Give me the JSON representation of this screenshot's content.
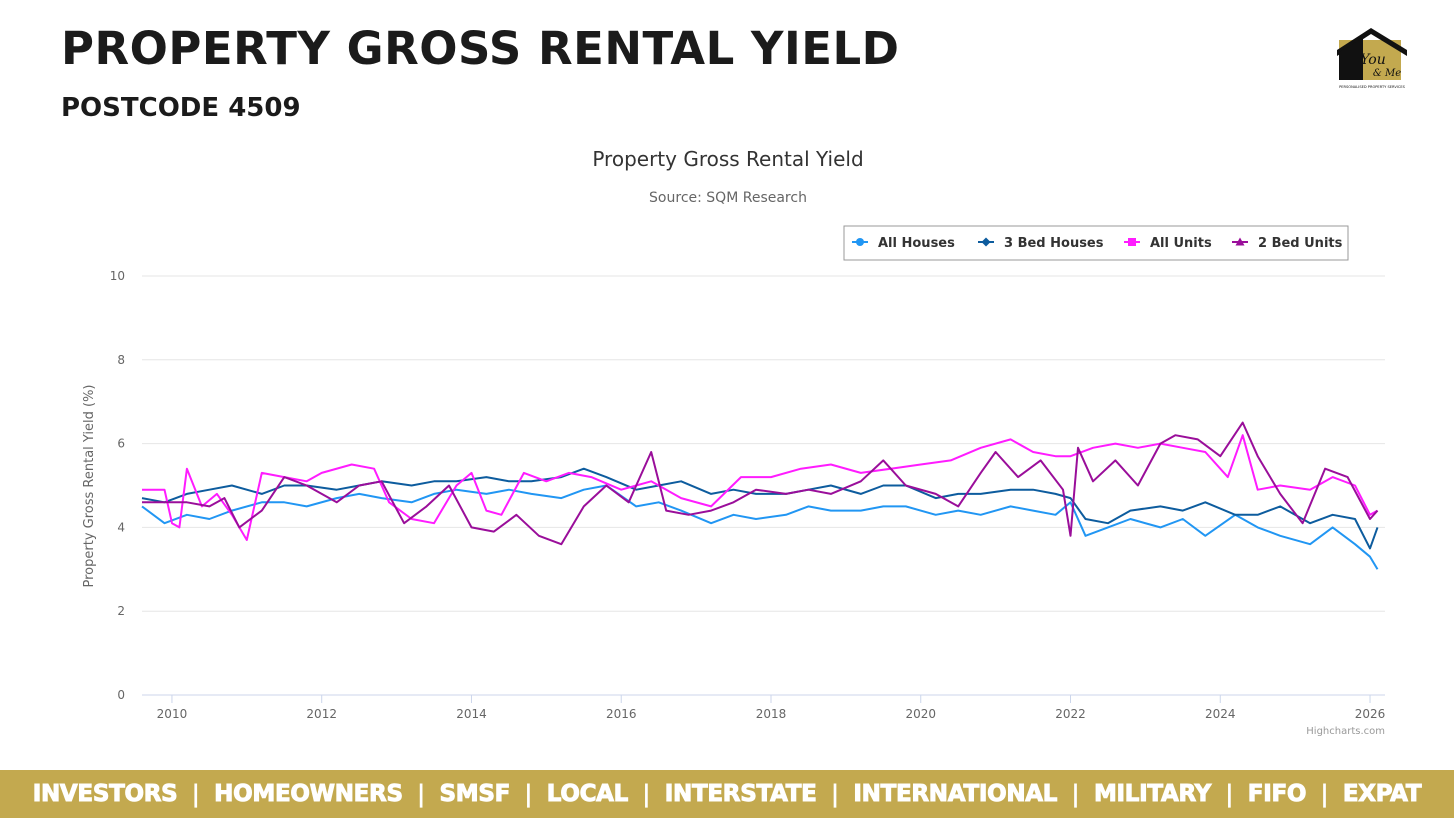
{
  "header": {
    "title": "PROPERTY GROSS RENTAL YIELD",
    "subtitle": "POSTCODE 4509",
    "logo_text": "You & Me",
    "logo_tagline": "PERSONALISED PROPERTY SERVICES"
  },
  "footer": {
    "items": [
      "INVESTORS",
      "HOMEOWNERS",
      "SMSF",
      "LOCAL",
      "INTERSTATE",
      "INTERNATIONAL",
      "MILITARY",
      "FIFO",
      "EXPAT"
    ],
    "separator": "|"
  },
  "colors": {
    "gold": "#c3a94f",
    "all_houses": "#2196f3",
    "three_bed_houses": "#0d5c9e",
    "all_units": "#ff1cff",
    "two_bed_units": "#9a0e9a"
  },
  "chart_data": {
    "type": "line",
    "title": "Property Gross Rental Yield",
    "subtitle": "Source: SQM Research",
    "xlabel": "",
    "ylabel": "Property Gross Rental Yield (%)",
    "credits": "Highcharts.com",
    "xlim": [
      2009.6,
      2026.2
    ],
    "ylim": [
      0,
      10
    ],
    "x_ticks": [
      "2010",
      "2012",
      "2014",
      "2016",
      "2018",
      "2020",
      "2022",
      "2024",
      "2026"
    ],
    "y_ticks": [
      "0",
      "2",
      "4",
      "6",
      "8",
      "10"
    ],
    "grid": true,
    "legend_position": "top-right",
    "series": [
      {
        "name": "All Houses",
        "marker": "circle",
        "color": "#2196f3",
        "x": [
          2009.6,
          2009.9,
          2010.2,
          2010.5,
          2010.8,
          2011.2,
          2011.5,
          2011.8,
          2012.2,
          2012.5,
          2012.8,
          2013.2,
          2013.5,
          2013.8,
          2014.2,
          2014.5,
          2014.8,
          2015.2,
          2015.5,
          2015.8,
          2016.2,
          2016.5,
          2016.8,
          2017.2,
          2017.5,
          2017.8,
          2018.2,
          2018.5,
          2018.8,
          2019.2,
          2019.5,
          2019.8,
          2020.2,
          2020.5,
          2020.8,
          2021.2,
          2021.5,
          2021.8,
          2022.0,
          2022.2,
          2022.5,
          2022.8,
          2023.2,
          2023.5,
          2023.8,
          2024.2,
          2024.5,
          2024.8,
          2025.2,
          2025.5,
          2025.8,
          2026.0,
          2026.1
        ],
        "y": [
          4.5,
          4.1,
          4.3,
          4.2,
          4.4,
          4.6,
          4.6,
          4.5,
          4.7,
          4.8,
          4.7,
          4.6,
          4.8,
          4.9,
          4.8,
          4.9,
          4.8,
          4.7,
          4.9,
          5.0,
          4.5,
          4.6,
          4.4,
          4.1,
          4.3,
          4.2,
          4.3,
          4.5,
          4.4,
          4.4,
          4.5,
          4.5,
          4.3,
          4.4,
          4.3,
          4.5,
          4.4,
          4.3,
          4.6,
          3.8,
          4.0,
          4.2,
          4.0,
          4.2,
          3.8,
          4.3,
          4.0,
          3.8,
          3.6,
          4.0,
          3.6,
          3.3,
          3.0
        ]
      },
      {
        "name": "3 Bed Houses",
        "marker": "diamond",
        "color": "#0d5c9e",
        "x": [
          2009.6,
          2009.9,
          2010.2,
          2010.5,
          2010.8,
          2011.2,
          2011.5,
          2011.8,
          2012.2,
          2012.5,
          2012.8,
          2013.2,
          2013.5,
          2013.8,
          2014.2,
          2014.5,
          2014.8,
          2015.2,
          2015.5,
          2015.8,
          2016.2,
          2016.5,
          2016.8,
          2017.2,
          2017.5,
          2017.8,
          2018.2,
          2018.5,
          2018.8,
          2019.2,
          2019.5,
          2019.8,
          2020.2,
          2020.5,
          2020.8,
          2021.2,
          2021.5,
          2021.8,
          2022.0,
          2022.2,
          2022.5,
          2022.8,
          2023.2,
          2023.5,
          2023.8,
          2024.2,
          2024.5,
          2024.8,
          2025.2,
          2025.5,
          2025.8,
          2026.0,
          2026.1
        ],
        "y": [
          4.7,
          4.6,
          4.8,
          4.9,
          5.0,
          4.8,
          5.0,
          5.0,
          4.9,
          5.0,
          5.1,
          5.0,
          5.1,
          5.1,
          5.2,
          5.1,
          5.1,
          5.2,
          5.4,
          5.2,
          4.9,
          5.0,
          5.1,
          4.8,
          4.9,
          4.8,
          4.8,
          4.9,
          5.0,
          4.8,
          5.0,
          5.0,
          4.7,
          4.8,
          4.8,
          4.9,
          4.9,
          4.8,
          4.7,
          4.2,
          4.1,
          4.4,
          4.5,
          4.4,
          4.6,
          4.3,
          4.3,
          4.5,
          4.1,
          4.3,
          4.2,
          3.5,
          4.0
        ]
      },
      {
        "name": "All Units",
        "marker": "square",
        "color": "#ff1cff",
        "x": [
          2009.6,
          2009.9,
          2010.0,
          2010.1,
          2010.2,
          2010.4,
          2010.6,
          2010.8,
          2011.0,
          2011.2,
          2011.5,
          2011.8,
          2012.0,
          2012.4,
          2012.7,
          2012.9,
          2013.2,
          2013.5,
          2013.8,
          2014.0,
          2014.2,
          2014.4,
          2014.7,
          2015.0,
          2015.3,
          2015.6,
          2016.0,
          2016.4,
          2016.8,
          2017.2,
          2017.6,
          2018.0,
          2018.4,
          2018.8,
          2019.2,
          2019.6,
          2020.0,
          2020.4,
          2020.8,
          2021.2,
          2021.5,
          2021.8,
          2022.0,
          2022.3,
          2022.6,
          2022.9,
          2023.2,
          2023.5,
          2023.8,
          2024.1,
          2024.3,
          2024.5,
          2024.8,
          2025.2,
          2025.5,
          2025.8,
          2026.0,
          2026.1
        ],
        "y": [
          4.9,
          4.9,
          4.1,
          4.0,
          5.4,
          4.5,
          4.8,
          4.3,
          3.7,
          5.3,
          5.2,
          5.1,
          5.3,
          5.5,
          5.4,
          4.6,
          4.2,
          4.1,
          5.0,
          5.3,
          4.4,
          4.3,
          5.3,
          5.1,
          5.3,
          5.2,
          4.9,
          5.1,
          4.7,
          4.5,
          5.2,
          5.2,
          5.4,
          5.5,
          5.3,
          5.4,
          5.5,
          5.6,
          5.9,
          6.1,
          5.8,
          5.7,
          5.7,
          5.9,
          6.0,
          5.9,
          6.0,
          5.9,
          5.8,
          5.2,
          6.2,
          4.9,
          5.0,
          4.9,
          5.2,
          5.0,
          4.3,
          4.4
        ]
      },
      {
        "name": "2 Bed Units",
        "marker": "triangle",
        "color": "#9a0e9a",
        "x": [
          2009.6,
          2009.9,
          2010.2,
          2010.5,
          2010.7,
          2010.9,
          2011.2,
          2011.5,
          2011.8,
          2012.2,
          2012.5,
          2012.8,
          2013.1,
          2013.4,
          2013.7,
          2014.0,
          2014.3,
          2014.6,
          2014.9,
          2015.2,
          2015.5,
          2015.8,
          2016.1,
          2016.4,
          2016.6,
          2016.9,
          2017.2,
          2017.5,
          2017.8,
          2018.2,
          2018.5,
          2018.8,
          2019.2,
          2019.5,
          2019.8,
          2020.2,
          2020.5,
          2020.8,
          2021.0,
          2021.3,
          2021.6,
          2021.9,
          2022.0,
          2022.1,
          2022.3,
          2022.6,
          2022.9,
          2023.2,
          2023.4,
          2023.7,
          2024.0,
          2024.3,
          2024.5,
          2024.8,
          2025.1,
          2025.4,
          2025.7,
          2026.0,
          2026.1
        ],
        "y": [
          4.6,
          4.6,
          4.6,
          4.5,
          4.7,
          4.0,
          4.4,
          5.2,
          5.0,
          4.6,
          5.0,
          5.1,
          4.1,
          4.5,
          5.0,
          4.0,
          3.9,
          4.3,
          3.8,
          3.6,
          4.5,
          5.0,
          4.6,
          5.8,
          4.4,
          4.3,
          4.4,
          4.6,
          4.9,
          4.8,
          4.9,
          4.8,
          5.1,
          5.6,
          5.0,
          4.8,
          4.5,
          5.3,
          5.8,
          5.2,
          5.6,
          4.9,
          3.8,
          5.9,
          5.1,
          5.6,
          5.0,
          6.0,
          6.2,
          6.1,
          5.7,
          6.5,
          5.7,
          4.8,
          4.1,
          5.4,
          5.2,
          4.2,
          4.4
        ]
      }
    ]
  }
}
